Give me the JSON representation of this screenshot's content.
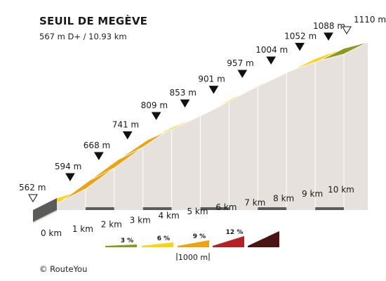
{
  "header": {
    "title": "SEUIL DE MEGÈVE",
    "subtitle": "567 m D+ / 10.93 km"
  },
  "footer": {
    "credit": "© RouteYou"
  },
  "colors": {
    "grade_3": "#8a9a1f",
    "grade_6": "#ffd21a",
    "grade_9": "#eda312",
    "grade_12": "#b52226",
    "grade_over_12": "#4b1414",
    "side_wall": "#e6e1dc",
    "base": "#5b5b5b"
  },
  "chart_data": {
    "type": "area",
    "title": "SEUIL DE MEGÈVE",
    "xlabel": "",
    "ylabel": "",
    "x_unit": "km",
    "y_unit": "m",
    "total_distance_km": 10.93,
    "elevation_gain_m": 567,
    "start_elevation_m": 562,
    "end_elevation_m": 1110,
    "km_labels": [
      "0 km",
      "1 km",
      "2 km",
      "3 km",
      "4 km",
      "5 km",
      "6 km",
      "7 km",
      "8 km",
      "9 km",
      "10 km"
    ],
    "points": [
      {
        "km": 0,
        "elevation": 562,
        "label": "562 m"
      },
      {
        "km": 1,
        "elevation": 594,
        "label": "594 m"
      },
      {
        "km": 2,
        "elevation": 668,
        "label": "668 m"
      },
      {
        "km": 3,
        "elevation": 741,
        "label": "741 m"
      },
      {
        "km": 4,
        "elevation": 809,
        "label": "809 m"
      },
      {
        "km": 5,
        "elevation": 853,
        "label": "853 m"
      },
      {
        "km": 6,
        "elevation": 901,
        "label": "901 m"
      },
      {
        "km": 7,
        "elevation": 957,
        "label": "957 m"
      },
      {
        "km": 8,
        "elevation": 1004,
        "label": "1004 m"
      },
      {
        "km": 9,
        "elevation": 1052,
        "label": "1052 m"
      },
      {
        "km": 10,
        "elevation": 1088,
        "label": "1088 m"
      },
      {
        "km": 10.93,
        "elevation": 1110,
        "label": "1110 m"
      }
    ],
    "legend": {
      "grades": [
        {
          "label": "3 %",
          "color": "#8a9a1f"
        },
        {
          "label": "6 %",
          "color": "#ffd21a"
        },
        {
          "label": "9 %",
          "color": "#eda312"
        },
        {
          "label": "12 %",
          "color": "#b52226"
        },
        {
          "label": "",
          "color": "#4b1414"
        }
      ],
      "scale_label": "1000 m"
    }
  }
}
